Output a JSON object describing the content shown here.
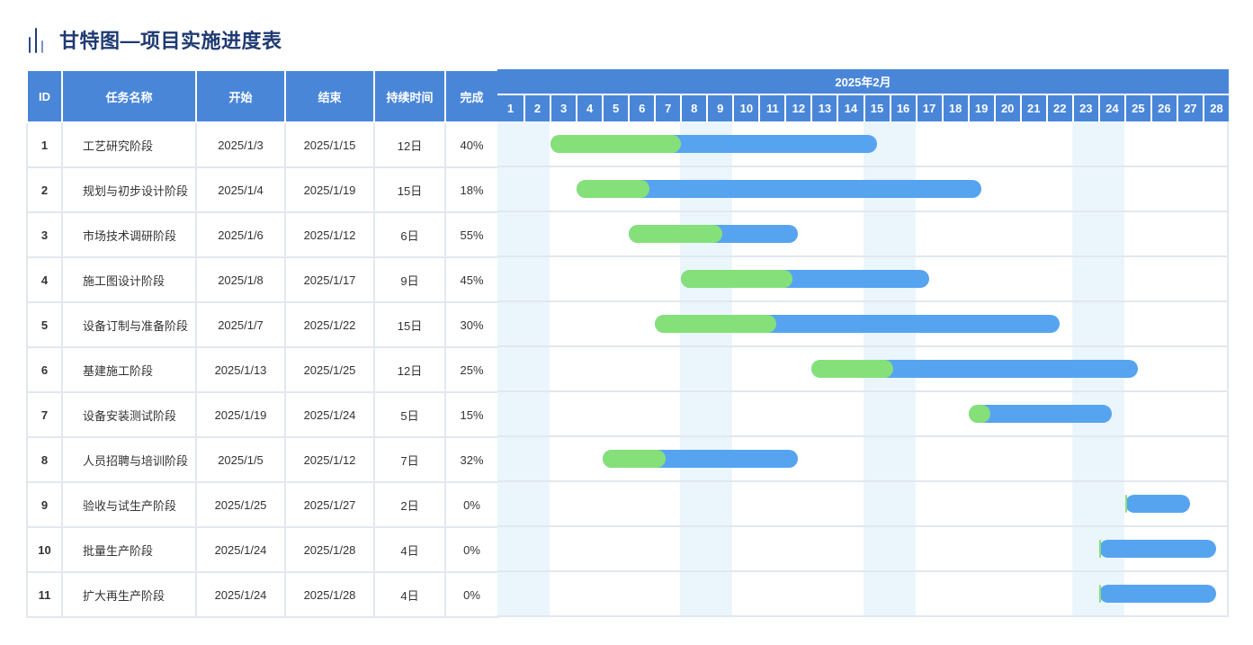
{
  "title": "甘特图—项目实施进度表",
  "headers": {
    "id": "ID",
    "name": "任务名称",
    "start": "开始",
    "end": "结束",
    "duration": "持续时间",
    "complete": "完成"
  },
  "chart_data": {
    "type": "gantt",
    "month_label": "2025年2月",
    "days": [
      "1",
      "2",
      "3",
      "4",
      "5",
      "6",
      "7",
      "8",
      "9",
      "10",
      "11",
      "12",
      "13",
      "14",
      "15",
      "16",
      "17",
      "18",
      "19",
      "20",
      "21",
      "22",
      "23",
      "24",
      "25",
      "26",
      "27",
      "28"
    ],
    "highlighted_days": [
      [
        1,
        2
      ],
      [
        8,
        9
      ],
      [
        15,
        16
      ],
      [
        23,
        24
      ]
    ],
    "colors": {
      "total": "#56a4f0",
      "done": "#85e07a",
      "header": "#4a86d8",
      "highlight": "#eaf6fc"
    },
    "tasks": [
      {
        "id": "1",
        "name": "工艺研究阶段",
        "start": "2025/1/3",
        "end": "2025/1/15",
        "duration": "12日",
        "complete": "40%",
        "bar_start_day": 3,
        "bar_end_day": 15,
        "pct": 0.4
      },
      {
        "id": "2",
        "name": "规划与初步设计阶段",
        "start": "2025/1/4",
        "end": "2025/1/19",
        "duration": "15日",
        "complete": "18%",
        "bar_start_day": 4,
        "bar_end_day": 19,
        "pct": 0.18
      },
      {
        "id": "3",
        "name": "市场技术调研阶段",
        "start": "2025/1/6",
        "end": "2025/1/12",
        "duration": "6日",
        "complete": "55%",
        "bar_start_day": 6,
        "bar_end_day": 12,
        "pct": 0.55
      },
      {
        "id": "4",
        "name": "施工图设计阶段",
        "start": "2025/1/8",
        "end": "2025/1/17",
        "duration": "9日",
        "complete": "45%",
        "bar_start_day": 8,
        "bar_end_day": 17,
        "pct": 0.45
      },
      {
        "id": "5",
        "name": "设备订制与准备阶段",
        "start": "2025/1/7",
        "end": "2025/1/22",
        "duration": "15日",
        "complete": "30%",
        "bar_start_day": 7,
        "bar_end_day": 22,
        "pct": 0.3
      },
      {
        "id": "6",
        "name": "基建施工阶段",
        "start": "2025/1/13",
        "end": "2025/1/25",
        "duration": "12日",
        "complete": "25%",
        "bar_start_day": 13,
        "bar_end_day": 25,
        "pct": 0.25
      },
      {
        "id": "7",
        "name": "设备安装测试阶段",
        "start": "2025/1/19",
        "end": "2025/1/24",
        "duration": "5日",
        "complete": "15%",
        "bar_start_day": 19,
        "bar_end_day": 24,
        "pct": 0.15
      },
      {
        "id": "8",
        "name": "人员招聘与培训阶段",
        "start": "2025/1/5",
        "end": "2025/1/12",
        "duration": "7日",
        "complete": "32%",
        "bar_start_day": 5,
        "bar_end_day": 12,
        "pct": 0.32
      },
      {
        "id": "9",
        "name": "验收与试生产阶段",
        "start": "2025/1/25",
        "end": "2025/1/27",
        "duration": "2日",
        "complete": "0%",
        "bar_start_day": 25,
        "bar_end_day": 27,
        "pct": 0.0
      },
      {
        "id": "10",
        "name": "批量生产阶段",
        "start": "2025/1/24",
        "end": "2025/1/28",
        "duration": "4日",
        "complete": "0%",
        "bar_start_day": 24,
        "bar_end_day": 28,
        "pct": 0.0
      },
      {
        "id": "11",
        "name": "扩大再生产阶段",
        "start": "2025/1/24",
        "end": "2025/1/28",
        "duration": "4日",
        "complete": "0%",
        "bar_start_day": 24,
        "bar_end_day": 28,
        "pct": 0.0
      }
    ]
  }
}
